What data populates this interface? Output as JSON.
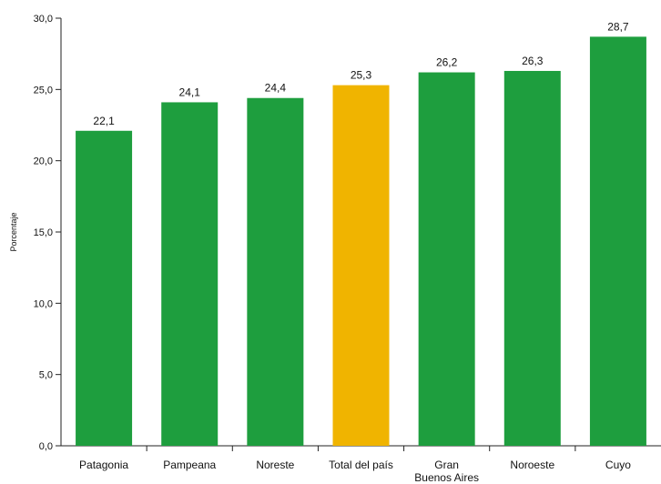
{
  "chart_data": {
    "type": "bar",
    "title": "",
    "xlabel": "",
    "ylabel": "Porcentaje",
    "ylim": [
      0,
      30
    ],
    "yticks": [
      "0,0",
      "5,0",
      "10,0",
      "15,0",
      "20,0",
      "25,0",
      "30,0"
    ],
    "categories": [
      [
        "Patagonia"
      ],
      [
        "Pampeana"
      ],
      [
        "Noreste"
      ],
      [
        "Total del país"
      ],
      [
        "Gran",
        "Buenos Aires"
      ],
      [
        "Noroeste"
      ],
      [
        "Cuyo"
      ]
    ],
    "values": [
      22.1,
      24.1,
      24.4,
      25.3,
      26.2,
      26.3,
      28.7
    ],
    "value_labels": [
      "22,1",
      "24,1",
      "24,4",
      "25,3",
      "26,2",
      "26,3",
      "28,7"
    ],
    "colors": [
      "#1e9e3e",
      "#1e9e3e",
      "#1e9e3e",
      "#f0b400",
      "#1e9e3e",
      "#1e9e3e",
      "#1e9e3e"
    ],
    "grid": false,
    "legend": "none"
  }
}
